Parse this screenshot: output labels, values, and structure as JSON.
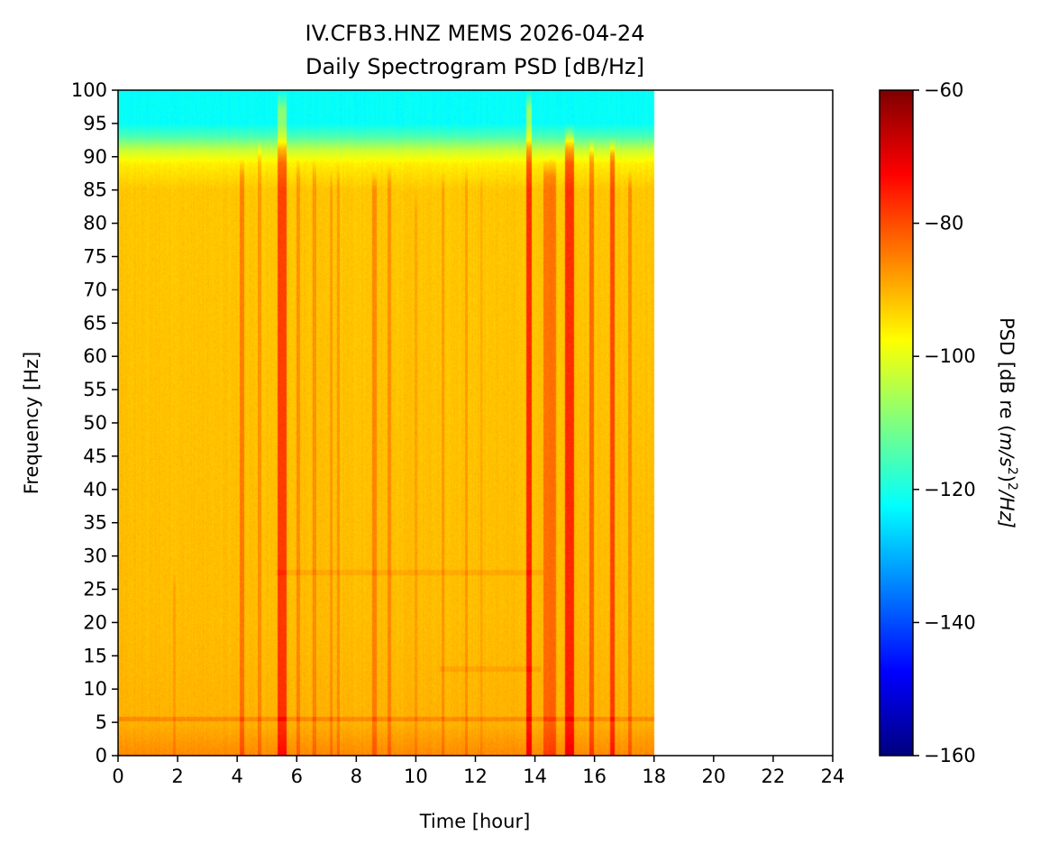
{
  "chart_data": {
    "type": "heatmap",
    "title": "IV.CFB3.HNZ MEMS 2026-04-24",
    "subtitle": "Daily Spectrogram PSD [dB/Hz]",
    "xlabel": "Time [hour]",
    "ylabel": "Frequency [Hz]",
    "xlim": [
      0,
      24
    ],
    "ylim": [
      0,
      100
    ],
    "x_ticks": [
      0,
      2,
      4,
      6,
      8,
      10,
      12,
      14,
      16,
      18,
      20,
      22,
      24
    ],
    "y_ticks": [
      0,
      5,
      10,
      15,
      20,
      25,
      30,
      35,
      40,
      45,
      50,
      55,
      60,
      65,
      70,
      75,
      80,
      85,
      90,
      95,
      100
    ],
    "data_extent_hours": [
      0,
      18
    ],
    "colormap": "jet",
    "colorbar": {
      "label_prefix": "PSD [dB re (",
      "label_math": "m/s",
      "label_sup": "2",
      "label_mid": ")",
      "label_sup2": "2",
      "label_tail": "/Hz]",
      "vmin": -160,
      "vmax": -60,
      "ticks": [
        -60,
        -80,
        -100,
        -120,
        -140,
        -160
      ]
    },
    "psd_profile_db": [
      {
        "freq_hz": 0,
        "value": -86
      },
      {
        "freq_hz": 5,
        "value": -90
      },
      {
        "freq_hz": 20,
        "value": -91
      },
      {
        "freq_hz": 85,
        "value": -92
      },
      {
        "freq_hz": 89,
        "value": -96
      },
      {
        "freq_hz": 91,
        "value": -103
      },
      {
        "freq_hz": 93,
        "value": -115
      },
      {
        "freq_hz": 95,
        "value": -122
      },
      {
        "freq_hz": 100,
        "value": -122
      }
    ],
    "events": [
      {
        "t": 1.9,
        "w": 0.1,
        "f_max": 28,
        "delta_db": 3
      },
      {
        "t": 4.15,
        "w": 0.15,
        "f_max": 90,
        "delta_db": 7
      },
      {
        "t": 4.75,
        "w": 0.12,
        "f_max": 93,
        "delta_db": 5
      },
      {
        "t": 5.5,
        "w": 0.3,
        "f_max": 100,
        "delta_db": 13
      },
      {
        "t": 6.05,
        "w": 0.12,
        "f_max": 90,
        "delta_db": 5
      },
      {
        "t": 6.6,
        "w": 0.12,
        "f_max": 90,
        "delta_db": 5
      },
      {
        "t": 7.15,
        "w": 0.1,
        "f_max": 88,
        "delta_db": 4
      },
      {
        "t": 7.4,
        "w": 0.1,
        "f_max": 89,
        "delta_db": 4
      },
      {
        "t": 8.6,
        "w": 0.15,
        "f_max": 88,
        "delta_db": 6
      },
      {
        "t": 9.1,
        "w": 0.12,
        "f_max": 89,
        "delta_db": 5
      },
      {
        "t": 10.0,
        "w": 0.08,
        "f_max": 85,
        "delta_db": 3
      },
      {
        "t": 10.9,
        "w": 0.1,
        "f_max": 88,
        "delta_db": 4
      },
      {
        "t": 11.7,
        "w": 0.1,
        "f_max": 89,
        "delta_db": 4
      },
      {
        "t": 12.2,
        "w": 0.08,
        "f_max": 88,
        "delta_db": 3
      },
      {
        "t": 13.8,
        "w": 0.2,
        "f_max": 100,
        "delta_db": 15
      },
      {
        "t": 14.5,
        "w": 0.4,
        "f_max": 90,
        "delta_db": 8
      },
      {
        "t": 15.15,
        "w": 0.3,
        "f_max": 95,
        "delta_db": 15
      },
      {
        "t": 15.9,
        "w": 0.15,
        "f_max": 93,
        "delta_db": 9
      },
      {
        "t": 16.6,
        "w": 0.15,
        "f_max": 93,
        "delta_db": 12
      },
      {
        "t": 17.2,
        "w": 0.12,
        "f_max": 88,
        "delta_db": 6
      }
    ],
    "horizontal_lines": [
      {
        "freq_hz": 5.5,
        "t_start": 0,
        "t_end": 18,
        "delta_db": 4
      },
      {
        "freq_hz": 27.5,
        "t_start": 5.3,
        "t_end": 14.3,
        "delta_db": 2
      },
      {
        "freq_hz": 13,
        "t_start": 10.8,
        "t_end": 14.2,
        "delta_db": 2
      }
    ]
  }
}
